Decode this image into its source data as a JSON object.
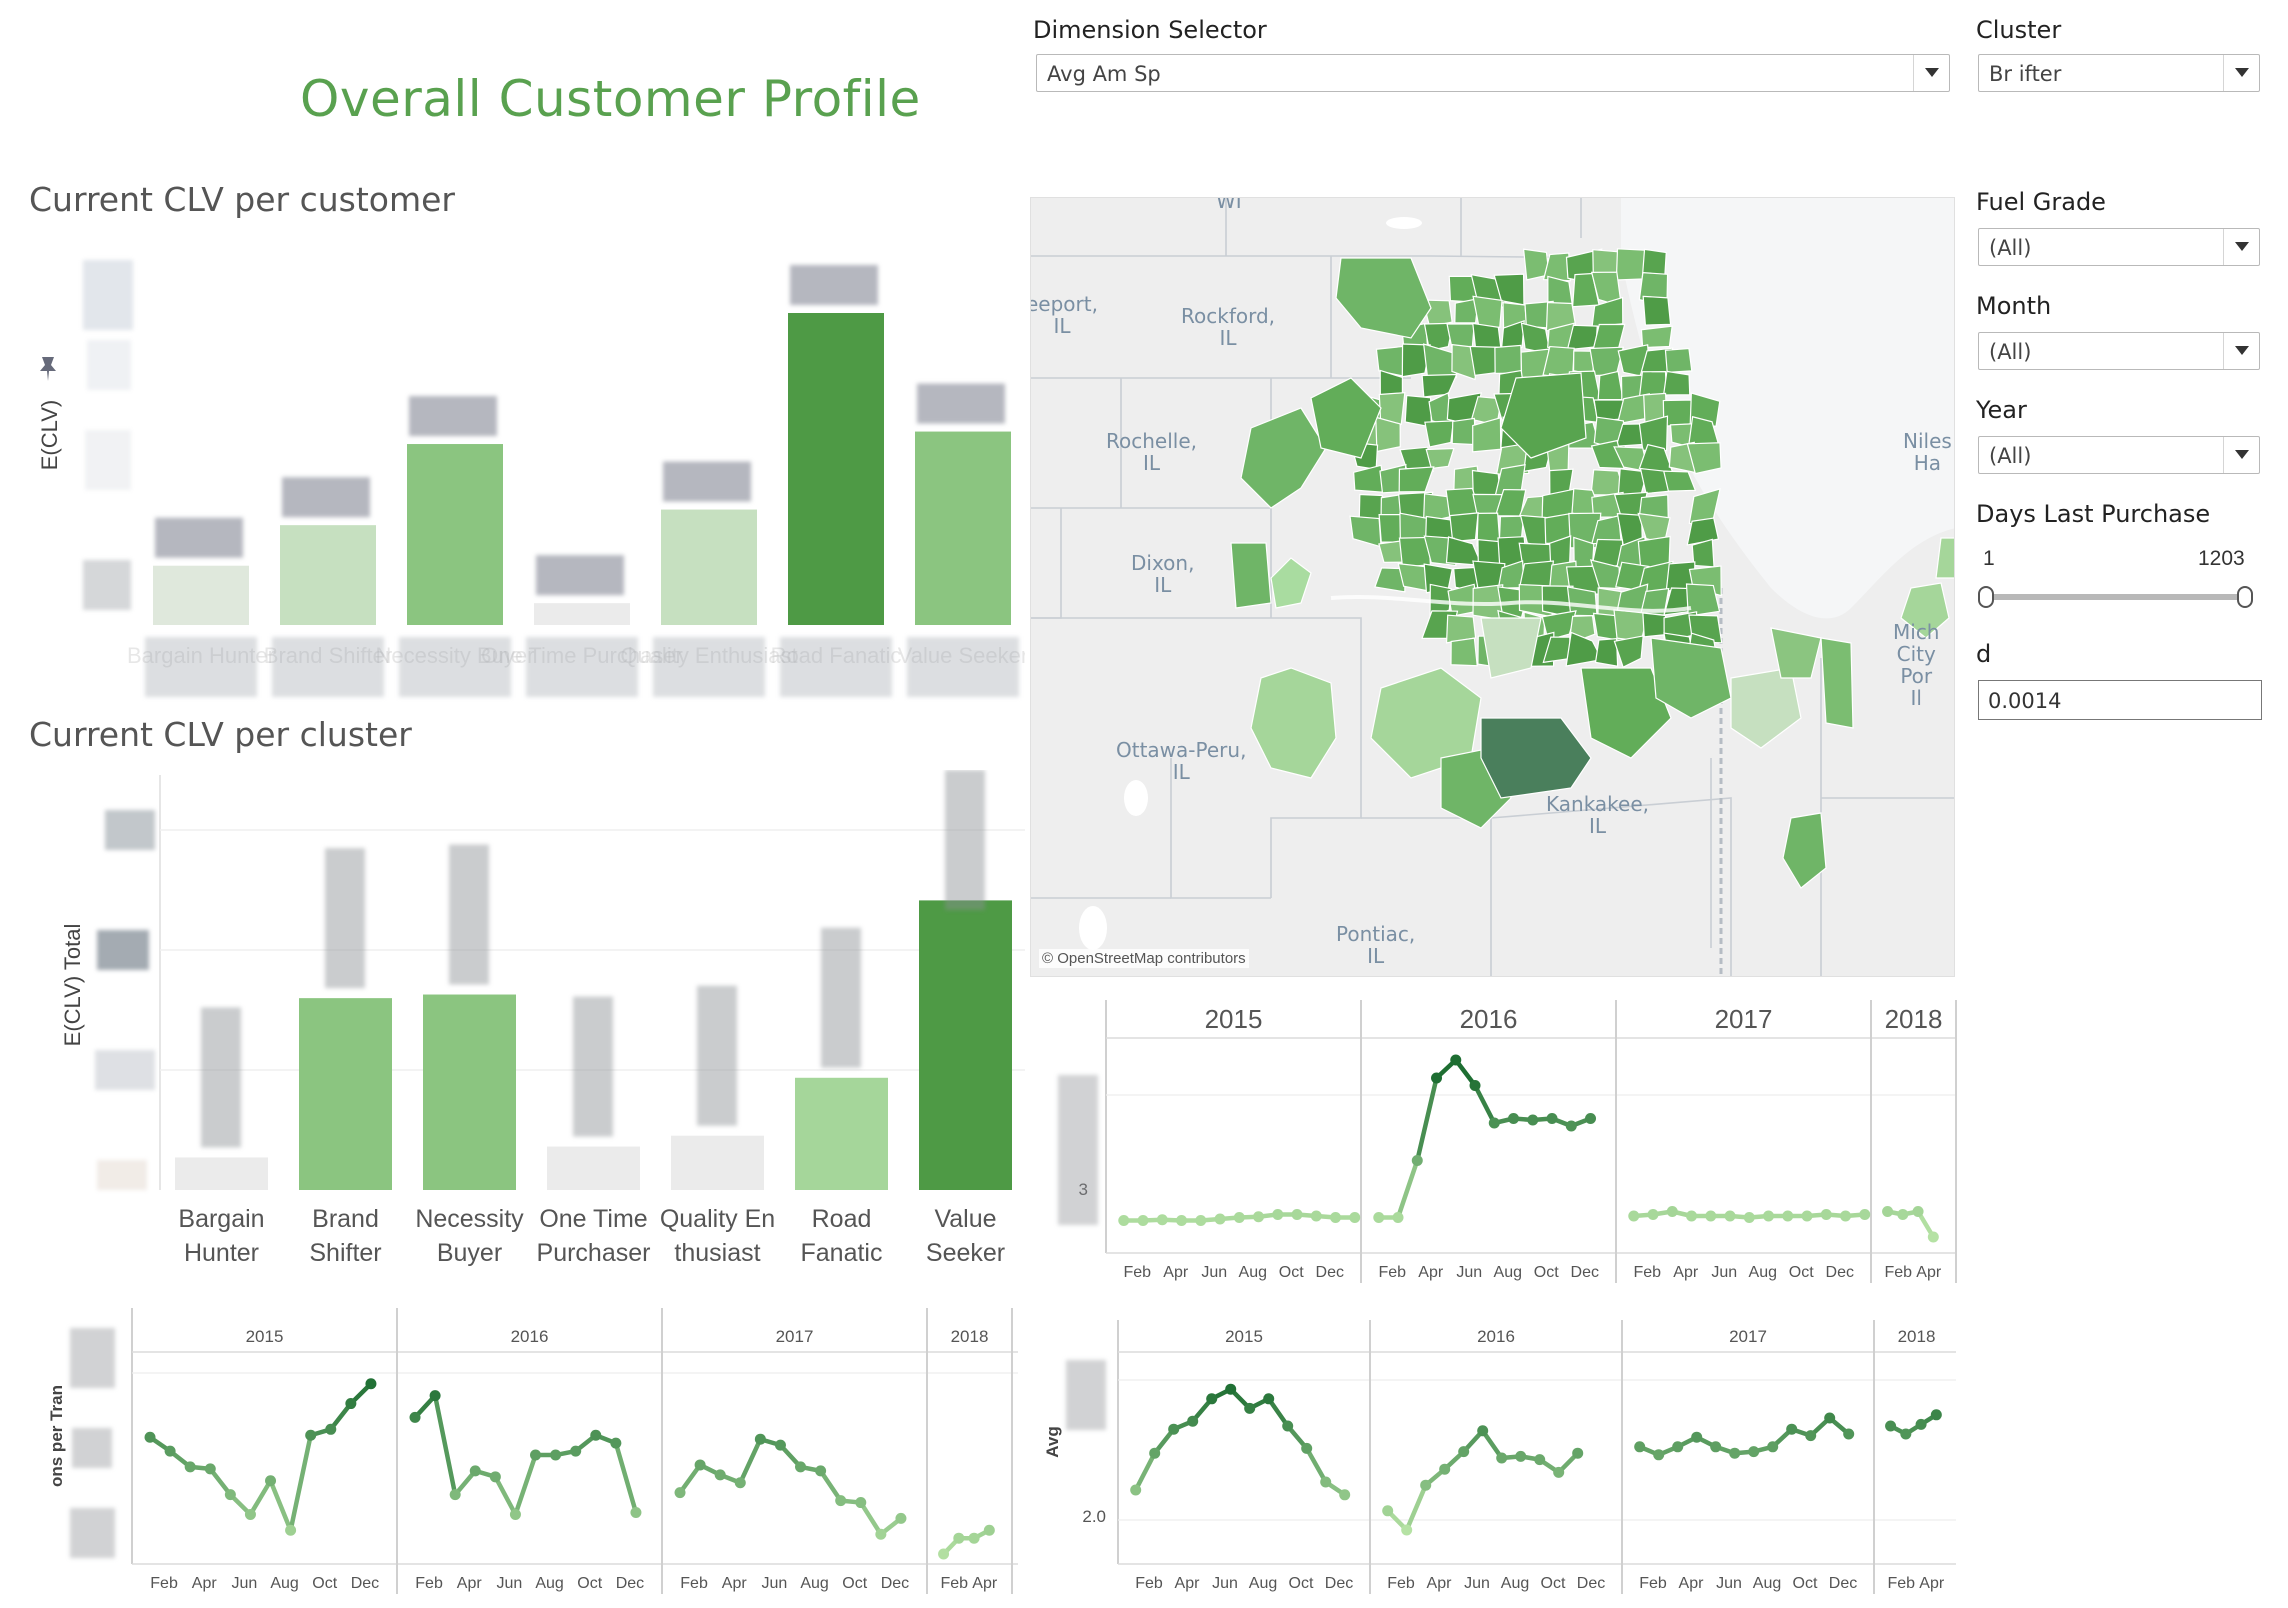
{
  "page": {
    "title": "Overall Customer Profile"
  },
  "sections": {
    "clv_per_customer": "Current CLV per customer",
    "clv_per_cluster": "Current CLV per cluster"
  },
  "filters": {
    "dimension_selector": {
      "label": "Dimension Selector",
      "value": "Avg Am      Sp"
    },
    "cluster": {
      "label": "Cluster",
      "value": "Br      ifter"
    },
    "fuel_grade": {
      "label": "Fuel Grade",
      "value": "(All)"
    },
    "month": {
      "label": "Month",
      "value": "(All)"
    },
    "year": {
      "label": "Year",
      "value": "(All)"
    },
    "days_last_purchase": {
      "label": "Days Last Purchase",
      "min": "1",
      "max": "1203"
    },
    "d": {
      "label": "d",
      "value": "0.0014"
    }
  },
  "map": {
    "credit": "© OpenStreetMap contributors",
    "places": [
      {
        "name": "eeport,\nIL"
      },
      {
        "name": "Rockford,\nIL"
      },
      {
        "name": "Rochelle,\nIL"
      },
      {
        "name": "Dixon,\nIL"
      },
      {
        "name": "Ottawa-Peru,\nIL"
      },
      {
        "name": "Kankakee,\nIL"
      },
      {
        "name": "Pontiac,\nIL"
      },
      {
        "name": "Niles\nHa"
      },
      {
        "name": "Mich\nCity\nPor\nIl"
      }
    ],
    "partial_label": "WI"
  },
  "colors": {
    "accent": "#59a14f",
    "g1": "#dfe8dc",
    "g2": "#c6e0c0",
    "g3": "#a5d69a",
    "g4": "#8bc580",
    "g5": "#67b05b",
    "g6": "#4e9a45",
    "g7": "#2e7d32",
    "gray": "#ebebeb"
  },
  "chart_data": [
    {
      "id": "clv_per_customer",
      "type": "bar",
      "ylabel": "E(CLV)",
      "categories": [
        "Bargain Hunter",
        "Brand Shifter",
        "Necessity Buyer",
        "One Time Purchaser",
        "Quality Enthusiast",
        "Road Fanatic",
        "Value Seeker"
      ],
      "values": [
        0.19,
        0.32,
        0.58,
        0.07,
        0.37,
        1.0,
        0.62
      ],
      "note": "values relative, axis labels obscured"
    },
    {
      "id": "clv_per_cluster",
      "type": "bar",
      "ylabel": "E(CLV) Total",
      "categories": [
        "Bargain\nHunter",
        "Brand\nShifter",
        "Necessity\nBuyer",
        "One Time\nPurchaser",
        "Quality En\nthusiast",
        "Road\nFanatic",
        "Value\nSeeker"
      ],
      "values": [
        0.09,
        0.53,
        0.54,
        0.12,
        0.15,
        0.31,
        0.8
      ],
      "note": "values relative, axis labels obscured"
    },
    {
      "id": "trend_top",
      "type": "line",
      "years": [
        "2015",
        "2016",
        "2017",
        "2018"
      ],
      "tick_labels": [
        "Feb",
        "Apr",
        "Jun",
        "Aug",
        "Oct",
        "Dec"
      ],
      "tick_labels_2018": [
        "Feb",
        "Apr"
      ],
      "y_tick": "3",
      "series": [
        {
          "values": [
            0.05,
            0.05,
            0.055,
            0.05,
            0.05,
            0.06,
            0.07,
            0.075,
            0.09,
            0.09,
            0.08,
            0.07,
            0.07
          ]
        },
        {
          "values": [
            0.07,
            0.07,
            0.45,
            1.0,
            1.12,
            0.95,
            0.7,
            0.73,
            0.72,
            0.73,
            0.68,
            0.73
          ]
        },
        {
          "values": [
            0.08,
            0.09,
            0.11,
            0.08,
            0.08,
            0.08,
            0.07,
            0.08,
            0.08,
            0.08,
            0.09,
            0.08,
            0.09
          ]
        },
        {
          "values": [
            0.11,
            0.09,
            0.11,
            -0.06
          ]
        }
      ]
    },
    {
      "id": "trend_bottom_left",
      "type": "line",
      "ylabel": "ons per Tran",
      "years": [
        "2015",
        "2016",
        "2017",
        "2018"
      ],
      "tick_labels": [
        "Feb",
        "Apr",
        "Jun",
        "Aug",
        "Oct",
        "Dec"
      ],
      "tick_labels_2018": [
        "Feb",
        "Apr"
      ],
      "series": [
        {
          "values": [
            0.61,
            0.54,
            0.46,
            0.45,
            0.32,
            0.22,
            0.39,
            0.14,
            0.62,
            0.65,
            0.78,
            0.88
          ]
        },
        {
          "values": [
            0.71,
            0.82,
            0.32,
            0.44,
            0.41,
            0.22,
            0.52,
            0.52,
            0.54,
            0.62,
            0.58,
            0.23
          ]
        },
        {
          "values": [
            0.33,
            0.47,
            0.42,
            0.38,
            0.6,
            0.57,
            0.46,
            0.44,
            0.29,
            0.28,
            0.12,
            0.2
          ]
        },
        {
          "values": [
            0.02,
            0.1,
            0.1,
            0.14
          ]
        }
      ]
    },
    {
      "id": "trend_bottom_right",
      "type": "line",
      "ylabel": "Avg",
      "y_tick": "2.0",
      "years": [
        "2015",
        "2016",
        "2017",
        "2018"
      ],
      "tick_labels": [
        "Feb",
        "Apr",
        "Jun",
        "Aug",
        "Oct",
        "Dec"
      ],
      "tick_labels_2018": [
        "Feb",
        "Apr"
      ],
      "series": [
        {
          "values": [
            0.25,
            0.48,
            0.63,
            0.68,
            0.82,
            0.88,
            0.76,
            0.82,
            0.65,
            0.51,
            0.3,
            0.22
          ]
        },
        {
          "values": [
            0.12,
            0.0,
            0.28,
            0.38,
            0.49,
            0.62,
            0.45,
            0.46,
            0.44,
            0.36,
            0.48
          ]
        },
        {
          "values": [
            0.52,
            0.47,
            0.52,
            0.58,
            0.52,
            0.48,
            0.49,
            0.52,
            0.63,
            0.59,
            0.7,
            0.6
          ]
        },
        {
          "values": [
            0.65,
            0.6,
            0.66,
            0.72
          ]
        }
      ]
    }
  ]
}
